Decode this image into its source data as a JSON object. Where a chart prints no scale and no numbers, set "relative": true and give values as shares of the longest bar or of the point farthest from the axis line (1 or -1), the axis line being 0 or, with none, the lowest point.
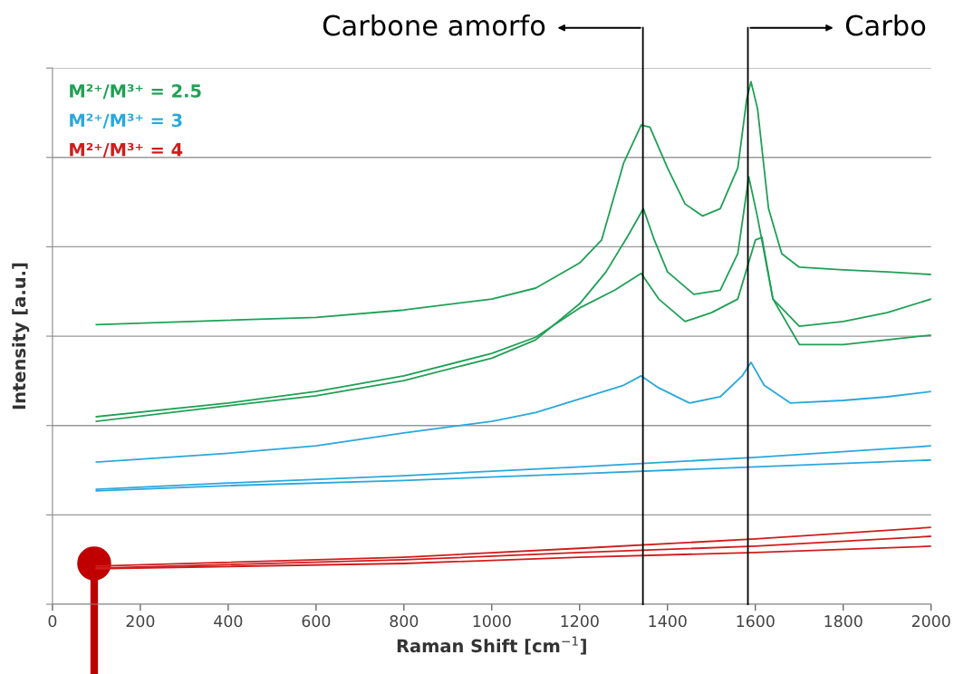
{
  "chart_data": {
    "type": "line",
    "relative": true,
    "xlabel": "Raman Shift [cm$^{−1}$]",
    "ylabel": "Intensity [a.u.]",
    "xlim": [
      0,
      2000
    ],
    "xticks": [
      0,
      200,
      400,
      600,
      800,
      1000,
      1200,
      1400,
      1600,
      1800,
      2000
    ],
    "grid": "y",
    "legend": "top left",
    "marker": "none",
    "line_style": "solid",
    "ref_lines": [
      {
        "axis": "x",
        "value": 1344,
        "label": "Carbone amorfo",
        "color": "#000000"
      },
      {
        "axis": "x",
        "value": 1583,
        "label": "Carbo",
        "color": "#000000"
      }
    ],
    "series": [
      {
        "name": "M²⁺/M³⁺ = 2.5",
        "color": "#1fa055",
        "x": [
          100,
          600,
          800,
          1000,
          1100,
          1200,
          1250,
          1300,
          1340,
          1360,
          1400,
          1440,
          1480,
          1520,
          1560,
          1580,
          1590,
          1605,
          1630,
          1660,
          1700,
          1800,
          1900,
          2000
        ],
        "values": [
          0.535,
          0.549,
          0.563,
          0.584,
          0.605,
          0.653,
          0.697,
          0.844,
          0.917,
          0.913,
          0.835,
          0.766,
          0.743,
          0.757,
          0.835,
          0.965,
          1.0,
          0.948,
          0.757,
          0.671,
          0.645,
          0.64,
          0.636,
          0.631
        ]
      },
      {
        "color": "#1fa055",
        "x": [
          100,
          400,
          600,
          800,
          1000,
          1100,
          1200,
          1260,
          1310,
          1345,
          1370,
          1400,
          1460,
          1520,
          1560,
          1585,
          1605,
          1640,
          1700,
          1800,
          1900,
          2000
        ],
        "values": [
          0.35,
          0.38,
          0.399,
          0.428,
          0.471,
          0.506,
          0.575,
          0.636,
          0.705,
          0.757,
          0.697,
          0.636,
          0.593,
          0.601,
          0.671,
          0.818,
          0.74,
          0.584,
          0.532,
          0.541,
          0.558,
          0.584
        ]
      },
      {
        "color": "#1fa055",
        "x": [
          100,
          400,
          600,
          800,
          1000,
          1100,
          1200,
          1280,
          1340,
          1380,
          1440,
          1500,
          1560,
          1600,
          1615,
          1640,
          1700,
          1800,
          1900,
          2000
        ],
        "values": [
          0.359,
          0.385,
          0.407,
          0.437,
          0.48,
          0.511,
          0.567,
          0.601,
          0.633,
          0.584,
          0.541,
          0.558,
          0.584,
          0.697,
          0.702,
          0.584,
          0.497,
          0.497,
          0.506,
          0.515
        ]
      },
      {
        "name": "M²⁺/M³⁺ = 3",
        "color": "#29a8dc",
        "x": [
          100,
          400,
          600,
          800,
          1000,
          1100,
          1200,
          1300,
          1340,
          1380,
          1450,
          1520,
          1570,
          1590,
          1620,
          1680,
          1800,
          1900,
          2000
        ],
        "values": [
          0.272,
          0.289,
          0.303,
          0.328,
          0.35,
          0.367,
          0.393,
          0.419,
          0.437,
          0.414,
          0.385,
          0.397,
          0.437,
          0.463,
          0.419,
          0.385,
          0.39,
          0.397,
          0.407
        ]
      },
      {
        "color": "#29a8dc",
        "x": [
          100,
          400,
          800,
          1200,
          1600,
          2000
        ],
        "values": [
          0.22,
          0.232,
          0.246,
          0.263,
          0.281,
          0.303
        ]
      },
      {
        "color": "#29a8dc",
        "x": [
          100,
          400,
          800,
          1200,
          1600,
          2000
        ],
        "values": [
          0.217,
          0.227,
          0.237,
          0.25,
          0.263,
          0.276
        ]
      },
      {
        "name": "M²⁺/M³⁺ = 4",
        "color": "#d01c1c",
        "x": [
          100,
          800,
          1200,
          1600,
          2000
        ],
        "values": [
          0.073,
          0.09,
          0.107,
          0.125,
          0.147
        ]
      },
      {
        "color": "#d01c1c",
        "x": [
          100,
          800,
          1200,
          1600,
          2000
        ],
        "values": [
          0.069,
          0.085,
          0.099,
          0.111,
          0.13
        ]
      },
      {
        "color": "#d01c1c",
        "x": [
          100,
          800,
          1200,
          1600,
          2000
        ],
        "values": [
          0.068,
          0.078,
          0.09,
          0.099,
          0.111
        ]
      }
    ]
  }
}
